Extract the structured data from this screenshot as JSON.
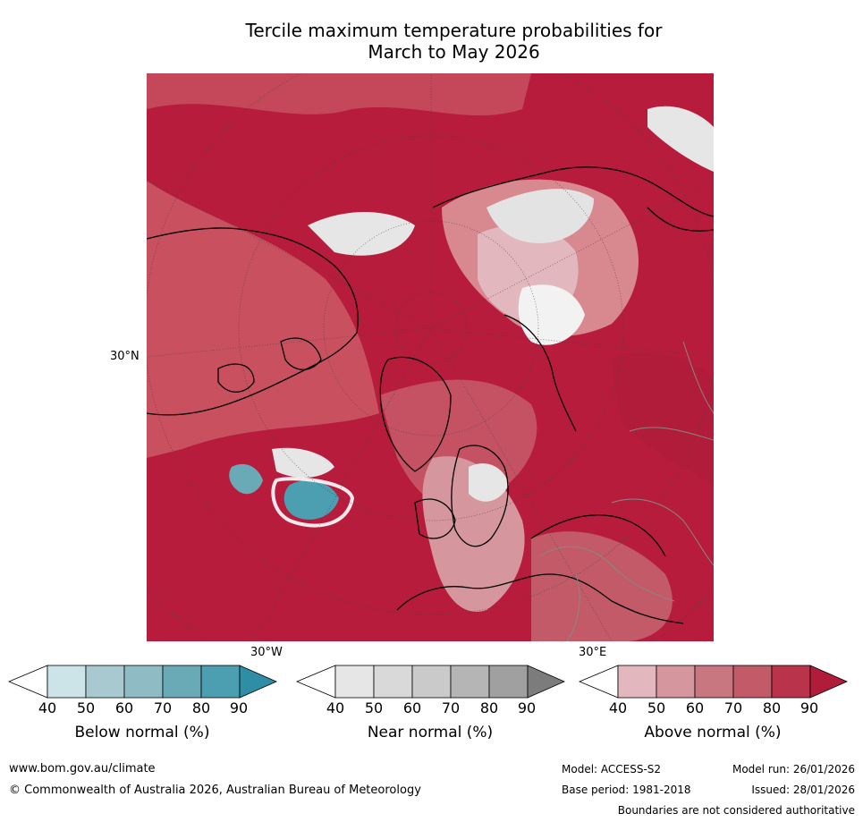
{
  "title": {
    "line1": "Tercile maximum temperature probabilities for",
    "line2": "March to May 2026"
  },
  "map": {
    "projection": "north polar stereographic",
    "labels": {
      "lat_30n": "30°N",
      "lon_30w": "30°W",
      "lon_30e": "30°E"
    },
    "colors": {
      "above_dominant": "#b71c3c",
      "above_mid": "#c8505f",
      "above_light": "#d8888f",
      "near_normal": "#e3e3e3",
      "below_normal": "#3aa3b4"
    }
  },
  "legend": {
    "ticks": [
      "40",
      "50",
      "60",
      "70",
      "80",
      "90"
    ],
    "below": {
      "title": "Below normal (%)",
      "colors": [
        "#ffffff",
        "#cce3e8",
        "#a8c9cf",
        "#8fbcc4",
        "#6aaab7",
        "#4b9fb1",
        "#2d8ea5"
      ]
    },
    "near": {
      "title": "Near normal (%)",
      "colors": [
        "#ffffff",
        "#e6e6e6",
        "#d9d9d9",
        "#cacaca",
        "#b5b5b5",
        "#a0a0a0",
        "#7c7c7c"
      ]
    },
    "above": {
      "title": "Above normal (%)",
      "colors": [
        "#ffffff",
        "#e2b7bd",
        "#d6969e",
        "#c87680",
        "#c35a67",
        "#b9334a",
        "#b01c3a"
      ]
    }
  },
  "footer": {
    "url": "www.bom.gov.au/climate",
    "copyright": "© Commonwealth of Australia 2026, Australian Bureau of Meteorology",
    "model": "Model: ACCESS-S2",
    "base_period": "Base period: 1981-2018",
    "model_run": "Model run: 26/01/2026",
    "issued": "Issued: 28/01/2026",
    "disclaimer": "Boundaries are not considered authoritative"
  }
}
